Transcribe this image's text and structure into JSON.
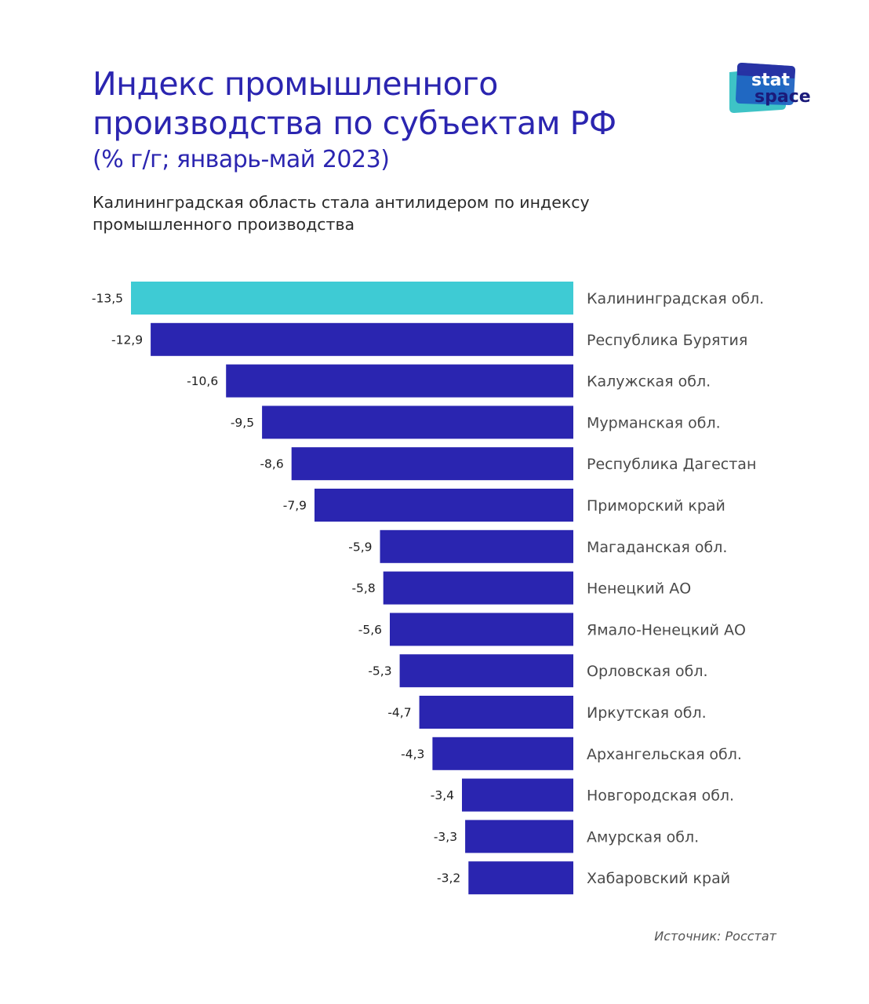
{
  "header": {
    "title_line1": "Индекс промышленного",
    "title_line2": "производства по субъектам РФ",
    "title_unit": "(% г/г; январь-май 2023)",
    "subtitle": "Калининградская область стала антилидером по индексу промышленного производства"
  },
  "logo": {
    "line1": "stat",
    "line2": "space"
  },
  "source": "Источник: Росстат",
  "colors": {
    "highlight": "#3ecbd4",
    "bar": "#2a25b0",
    "title": "#2b25b0"
  },
  "chart_data": {
    "type": "bar",
    "orientation": "horizontal",
    "title": "Индекс промышленного производства по субъектам РФ (% г/г; январь-май 2023)",
    "xlabel": "",
    "ylabel": "",
    "xlim": [
      -13.5,
      0
    ],
    "grid": false,
    "legend": "none",
    "highlight_index": 0,
    "categories": [
      "Калининградская обл.",
      "Республика Бурятия",
      "Калужская обл.",
      "Мурманская обл.",
      "Республика Дагестан",
      "Приморский край",
      "Магаданская обл.",
      "Ненецкий АО",
      "Ямало-Ненецкий АО",
      "Орловская обл.",
      "Иркутская обл.",
      "Архангельская обл.",
      "Новгородская обл.",
      "Амурская обл.",
      "Хабаровский край"
    ],
    "values": [
      -13.5,
      -12.9,
      -10.6,
      -9.5,
      -8.6,
      -7.9,
      -5.9,
      -5.8,
      -5.6,
      -5.3,
      -4.7,
      -4.3,
      -3.4,
      -3.3,
      -3.2
    ],
    "value_labels": [
      "-13,5",
      "-12,9",
      "-10,6",
      "-9,5",
      "-8,6",
      "-7,9",
      "-5,9",
      "-5,8",
      "-5,6",
      "-5,3",
      "-4,7",
      "-4,3",
      "-3,4",
      "-3,3",
      "-3,2"
    ]
  }
}
